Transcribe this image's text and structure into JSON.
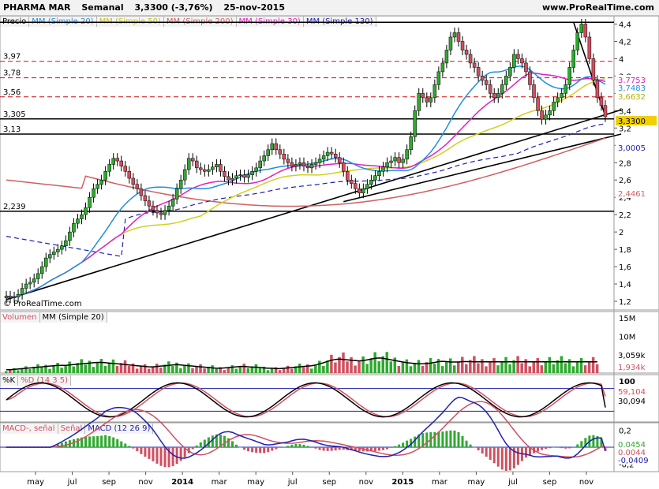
{
  "header": {
    "instrument": "PHARMA MAR",
    "period": "Semanal",
    "quote": "3,3300 (-3,76%)",
    "date": "25-nov-2015",
    "site": "www.ProRealTime.com"
  },
  "colors": {
    "up_candle": "#2eaa2e",
    "down_candle": "#d05060",
    "sma20": "#1f8fe0",
    "sma50": "#d0d020",
    "sma200": "#d06060",
    "sma30": "#e020c0",
    "sma130": "#2020b0",
    "hline_red": "#d01010",
    "price_tag": "#f0d000"
  },
  "panels": {
    "price": {
      "legend": [
        "Precio",
        "MM (Simple 20)",
        "MM (Simple 50)",
        "MM (Simple 200)",
        "MM (Simple 30)",
        "MM (Simple 130)"
      ],
      "watermark": "© ProRealTime.com",
      "axis_ticks": [
        "4,4",
        "4,2",
        "4",
        "3,8",
        "3,6",
        "3,4",
        "3,2",
        "3",
        "2,8",
        "2,6",
        "2,4",
        "2,2",
        "2",
        "1,8",
        "1,6",
        "1,4",
        "1,2"
      ],
      "level_labels": [
        "3,97",
        "3,78",
        "3,56",
        "3,305",
        "3,13",
        "2,239"
      ],
      "tag_values": [
        "3,7753",
        "3,7483",
        "3,6632",
        "3,3300",
        "3,0005",
        "2,4461"
      ]
    },
    "volume": {
      "legend": [
        "Volumen",
        "MM (Simple 20)"
      ],
      "axis_ticks": [
        "15M",
        "10M"
      ],
      "tag_values": [
        "3,059k",
        "1,934k"
      ]
    },
    "stoch": {
      "legend": [
        "%K",
        "%D (14 3 5)"
      ],
      "axis_ticks": [
        "100"
      ],
      "tag_values": [
        "59,104",
        "30,094"
      ]
    },
    "macd": {
      "legend": [
        "MACD-, señal",
        "Señal",
        "MACD (12 26 9)"
      ],
      "axis_ticks": [
        "0,2",
        "-0,2"
      ],
      "tag_values": [
        "0,0454",
        "0,0044",
        "-0,0409"
      ]
    }
  },
  "xaxis_labels": [
    "may",
    "jul",
    "sep",
    "nov",
    "2014",
    "mar",
    "may",
    "jul",
    "sep",
    "nov",
    "2015",
    "mar",
    "may",
    "jul",
    "sep",
    "nov"
  ],
  "chart_data": {
    "type": "candlestick",
    "title": "PHARMA MAR Semanal",
    "ylim": [
      1.1,
      4.45
    ],
    "horizontal_levels": [
      {
        "value": 4.42,
        "style": "black"
      },
      {
        "value": 3.97,
        "style": "red-dashed"
      },
      {
        "value": 3.78,
        "style": "red-dashed"
      },
      {
        "value": 3.56,
        "style": "red-dashed"
      },
      {
        "value": 3.305,
        "style": "black"
      },
      {
        "value": 3.13,
        "style": "black"
      },
      {
        "value": 2.239,
        "style": "black"
      }
    ],
    "close_weekly": [
      1.26,
      1.24,
      1.25,
      1.28,
      1.35,
      1.4,
      1.42,
      1.46,
      1.52,
      1.6,
      1.7,
      1.74,
      1.77,
      1.8,
      1.84,
      1.9,
      2,
      2.1,
      2.15,
      2.2,
      2.28,
      2.4,
      2.5,
      2.55,
      2.6,
      2.7,
      2.78,
      2.85,
      2.82,
      2.76,
      2.7,
      2.62,
      2.55,
      2.5,
      2.42,
      2.36,
      2.3,
      2.25,
      2.22,
      2.2,
      2.25,
      2.3,
      2.38,
      2.5,
      2.6,
      2.72,
      2.85,
      2.82,
      2.74,
      2.72,
      2.7,
      2.72,
      2.75,
      2.78,
      2.7,
      2.64,
      2.6,
      2.62,
      2.65,
      2.66,
      2.63,
      2.66,
      2.7,
      2.74,
      2.82,
      2.88,
      2.95,
      3.02,
      2.95,
      2.9,
      2.84,
      2.8,
      2.76,
      2.78,
      2.8,
      2.76,
      2.74,
      2.78,
      2.8,
      2.84,
      2.88,
      2.92,
      2.9,
      2.86,
      2.8,
      2.7,
      2.6,
      2.56,
      2.5,
      2.45,
      2.5,
      2.55,
      2.6,
      2.65,
      2.7,
      2.75,
      2.8,
      2.82,
      2.86,
      2.8,
      2.84,
      2.95,
      3.1,
      3.4,
      3.6,
      3.55,
      3.5,
      3.55,
      3.7,
      3.85,
      3.95,
      4.1,
      4.25,
      4.3,
      4.2,
      4.1,
      4.05,
      3.95,
      3.9,
      3.8,
      3.75,
      3.7,
      3.6,
      3.55,
      3.6,
      3.7,
      3.8,
      3.9,
      4.05,
      4,
      3.95,
      3.85,
      3.7,
      3.55,
      3.4,
      3.3,
      3.35,
      3.4,
      3.5,
      3.55,
      3.6,
      3.7,
      3.9,
      4.1,
      4.3,
      4.4,
      4.25,
      4.0,
      3.75,
      3.55,
      3.46,
      3.33
    ],
    "volume_ma20": [
      0.9,
      0.9,
      1,
      1.1,
      1.2,
      1.3,
      1.4,
      1.5,
      1.6,
      1.7,
      1.8,
      1.9,
      2,
      2.1,
      2.1,
      2.1,
      2.2,
      2.3,
      2.4,
      2.5,
      2.6,
      2.7,
      2.8,
      2.9,
      2.9,
      2.8,
      2.7,
      2.6,
      2.5,
      2.4,
      2.3,
      2.2,
      2.1,
      2,
      1.9,
      1.8,
      1.7,
      1.7,
      1.8,
      1.9,
      2,
      2.1,
      2.2,
      2.3,
      2.2,
      2.1,
      2,
      1.9,
      1.8,
      1.7,
      1.6,
      1.5,
      1.4,
      1.3,
      1.3,
      1.4,
      1.5,
      1.6,
      1.7,
      1.8,
      1.8,
      1.7,
      1.6,
      1.6,
      1.5,
      1.4,
      1.3,
      1.3,
      1.2,
      1.2,
      1.3,
      1.4,
      1.5,
      1.6,
      1.7,
      1.8,
      1.9,
      2,
      2.2,
      2.5,
      2.8,
      3.2,
      3.5,
      3.7,
      3.8,
      3.7,
      3.6,
      3.5,
      3.4,
      3.3,
      3.4,
      3.6,
      3.8,
      4,
      4.1,
      4,
      3.8,
      3.6,
      3.4,
      3.2,
      3,
      2.8,
      2.7,
      2.6,
      2.5,
      2.5,
      2.6,
      2.7,
      2.9,
      3.1,
      3.2,
      3.1,
      3,
      3,
      3,
      3.1,
      3.1,
      3.1,
      3.06,
      3.06,
      3.06,
      3.06,
      3.06,
      3.06,
      3.06,
      3.06,
      3.06,
      3.06,
      3.06,
      3.06,
      3.06,
      3.06,
      3.06,
      3.06,
      3.06,
      3.06,
      3.06,
      3.06,
      3.06,
      3.06,
      3.06,
      3.06,
      3.06,
      3.06,
      3.06,
      3.06,
      3.06,
      3.06,
      3.06,
      3.06
    ],
    "stoch_k_last": 30.094,
    "stoch_d_last": 59.104,
    "macd_last": -0.0409,
    "signal_last": 0.0044
  }
}
